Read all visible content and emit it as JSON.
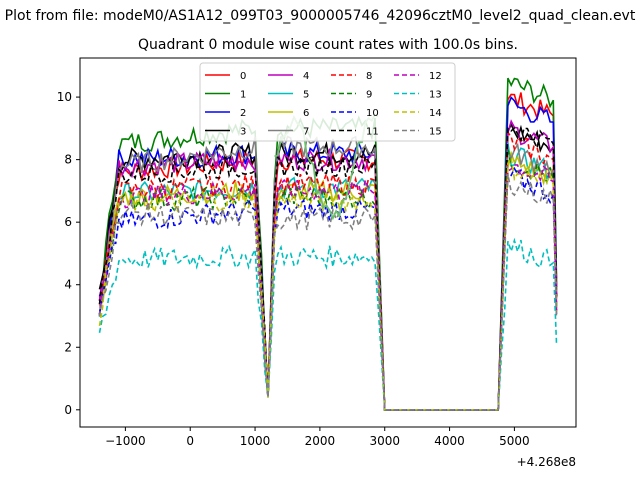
{
  "figure": {
    "suptitle": "Plot from file: modeM0/AS1A12_099T03_9000005746_42096cztM0_level2_quad_clean.evt",
    "title": "Quadrant 0 module wise count rates with 100.0s bins.",
    "x_offset_label": "+4.268e8"
  },
  "chart_data": {
    "type": "line",
    "title": "Quadrant 0 module wise count rates with 100.0s bins.",
    "xlabel": "",
    "ylabel": "",
    "x_offset": "+4.268e8",
    "xlim": [
      -1700,
      5950
    ],
    "ylim": [
      -0.55,
      11.25
    ],
    "x_ticks": [
      -1000,
      0,
      1000,
      2000,
      3000,
      4000,
      5000
    ],
    "x_tick_labels": [
      "−1000",
      "0",
      "1000",
      "2000",
      "3000",
      "4000",
      "5000"
    ],
    "y_ticks": [
      0,
      2,
      4,
      6,
      8,
      10
    ],
    "y_tick_labels": [
      "0",
      "2",
      "4",
      "6",
      "8",
      "10"
    ],
    "grid": false,
    "legend_position": "top-center",
    "legend_columns": 4,
    "gaps": [
      [
        1200,
        1250
      ],
      [
        2900,
        3000
      ],
      [
        4700,
        4800
      ],
      [
        5600,
        5650
      ]
    ],
    "levels": [
      {
        "a": 3.5,
        "b": 7.6,
        "c": 8.0,
        "d": 10.0
      },
      {
        "a": 3.5,
        "b": 8.5,
        "c": 9.0,
        "d": 10.5
      },
      {
        "a": 3.5,
        "b": 8.0,
        "c": 8.2,
        "d": 9.8
      },
      {
        "a": 3.6,
        "b": 8.0,
        "c": 8.2,
        "d": 9.0
      },
      {
        "a": 3.3,
        "b": 7.8,
        "c": 8.0,
        "d": 9.0
      },
      {
        "a": 3.2,
        "b": 6.9,
        "c": 7.1,
        "d": 8.2
      },
      {
        "a": 3.1,
        "b": 6.8,
        "c": 7.0,
        "d": 8.0
      },
      {
        "a": 3.1,
        "b": 7.8,
        "c": 8.4,
        "d": 8.3
      },
      {
        "a": 3.2,
        "b": 7.0,
        "c": 7.2,
        "d": 8.6
      },
      {
        "a": 3.0,
        "b": 6.7,
        "c": 6.8,
        "d": 8.0
      },
      {
        "a": 3.0,
        "b": 6.0,
        "c": 6.4,
        "d": 7.5
      },
      {
        "a": 3.3,
        "b": 7.5,
        "c": 7.8,
        "d": 9.1
      },
      {
        "a": 3.1,
        "b": 6.8,
        "c": 7.0,
        "d": 7.9
      },
      {
        "a": 2.4,
        "b": 4.8,
        "c": 4.9,
        "d": 5.3
      },
      {
        "a": 3.0,
        "b": 6.6,
        "c": 6.7,
        "d": 7.8
      },
      {
        "a": 3.0,
        "b": 6.3,
        "c": 6.1,
        "d": 7.3
      }
    ],
    "series": [
      {
        "name": "0",
        "color": "#ff0000",
        "dash": "solid"
      },
      {
        "name": "1",
        "color": "#008000",
        "dash": "solid"
      },
      {
        "name": "2",
        "color": "#0000ff",
        "dash": "solid"
      },
      {
        "name": "3",
        "color": "#000000",
        "dash": "solid"
      },
      {
        "name": "4",
        "color": "#bf00bf",
        "dash": "solid"
      },
      {
        "name": "5",
        "color": "#00bfbf",
        "dash": "solid"
      },
      {
        "name": "6",
        "color": "#bfbf00",
        "dash": "solid"
      },
      {
        "name": "7",
        "color": "#808080",
        "dash": "solid"
      },
      {
        "name": "8",
        "color": "#ff0000",
        "dash": "dashed"
      },
      {
        "name": "9",
        "color": "#008000",
        "dash": "dashed"
      },
      {
        "name": "10",
        "color": "#0000ff",
        "dash": "dashed"
      },
      {
        "name": "11",
        "color": "#000000",
        "dash": "dashed"
      },
      {
        "name": "12",
        "color": "#bf00bf",
        "dash": "dashed"
      },
      {
        "name": "13",
        "color": "#00bfbf",
        "dash": "dashed"
      },
      {
        "name": "14",
        "color": "#bfbf00",
        "dash": "dashed"
      },
      {
        "name": "15",
        "color": "#808080",
        "dash": "dashed"
      }
    ],
    "overlay_line": {
      "color": "#6abf69",
      "x_range": [
        1300,
        2900
      ],
      "y_range": [
        6.2,
        9.2
      ]
    }
  }
}
